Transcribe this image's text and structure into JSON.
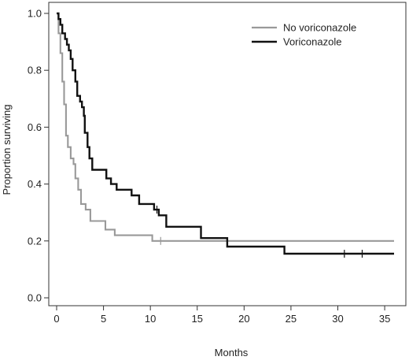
{
  "chart_data": {
    "type": "line",
    "subtype": "kaplan-meier-step",
    "title": "",
    "xlabel": "Months",
    "ylabel": "Proportion surviving",
    "xlim": [
      0,
      36
    ],
    "ylim": [
      0,
      1.0
    ],
    "x_ticks": [
      0,
      5,
      10,
      15,
      20,
      25,
      30,
      35
    ],
    "y_ticks": [
      0.0,
      0.2,
      0.4,
      0.6,
      0.8,
      1.0
    ],
    "x_tick_labels": [
      "0",
      "5",
      "10",
      "15",
      "20",
      "25",
      "30",
      "35"
    ],
    "y_tick_labels": [
      "0.0",
      "0.2",
      "0.4",
      "0.6",
      "0.8",
      "1.0"
    ],
    "grid": false,
    "legend_position": "top-right",
    "series": [
      {
        "name": "No voriconazole",
        "color": "#999999",
        "points": [
          [
            0,
            1.0
          ],
          [
            0.2,
            0.93
          ],
          [
            0.4,
            0.86
          ],
          [
            0.6,
            0.76
          ],
          [
            0.8,
            0.68
          ],
          [
            1.0,
            0.57
          ],
          [
            1.2,
            0.53
          ],
          [
            1.5,
            0.49
          ],
          [
            1.8,
            0.47
          ],
          [
            2.0,
            0.42
          ],
          [
            2.3,
            0.38
          ],
          [
            2.6,
            0.33
          ],
          [
            3.1,
            0.31
          ],
          [
            3.6,
            0.27
          ],
          [
            5.2,
            0.24
          ],
          [
            6.2,
            0.22
          ],
          [
            10.2,
            0.2
          ],
          [
            36,
            0.2
          ]
        ],
        "censored": [
          [
            11.1,
            0.2
          ]
        ]
      },
      {
        "name": "Voriconazole",
        "color": "#111111",
        "points": [
          [
            0,
            1.0
          ],
          [
            0.2,
            0.98
          ],
          [
            0.4,
            0.96
          ],
          [
            0.6,
            0.93
          ],
          [
            0.9,
            0.91
          ],
          [
            1.1,
            0.89
          ],
          [
            1.3,
            0.87
          ],
          [
            1.5,
            0.84
          ],
          [
            1.7,
            0.8
          ],
          [
            2.0,
            0.76
          ],
          [
            2.2,
            0.71
          ],
          [
            2.5,
            0.69
          ],
          [
            2.7,
            0.67
          ],
          [
            2.9,
            0.64
          ],
          [
            3.0,
            0.58
          ],
          [
            3.3,
            0.53
          ],
          [
            3.5,
            0.49
          ],
          [
            3.8,
            0.45
          ],
          [
            5.3,
            0.42
          ],
          [
            5.8,
            0.4
          ],
          [
            6.4,
            0.38
          ],
          [
            8.0,
            0.36
          ],
          [
            8.8,
            0.33
          ],
          [
            10.4,
            0.31
          ],
          [
            10.9,
            0.29
          ],
          [
            11.7,
            0.25
          ],
          [
            15.4,
            0.21
          ],
          [
            18.2,
            0.18
          ],
          [
            24.3,
            0.155
          ],
          [
            36,
            0.155
          ]
        ],
        "censored": [
          [
            10.7,
            0.31
          ],
          [
            30.7,
            0.155
          ],
          [
            32.6,
            0.155
          ]
        ]
      }
    ]
  }
}
